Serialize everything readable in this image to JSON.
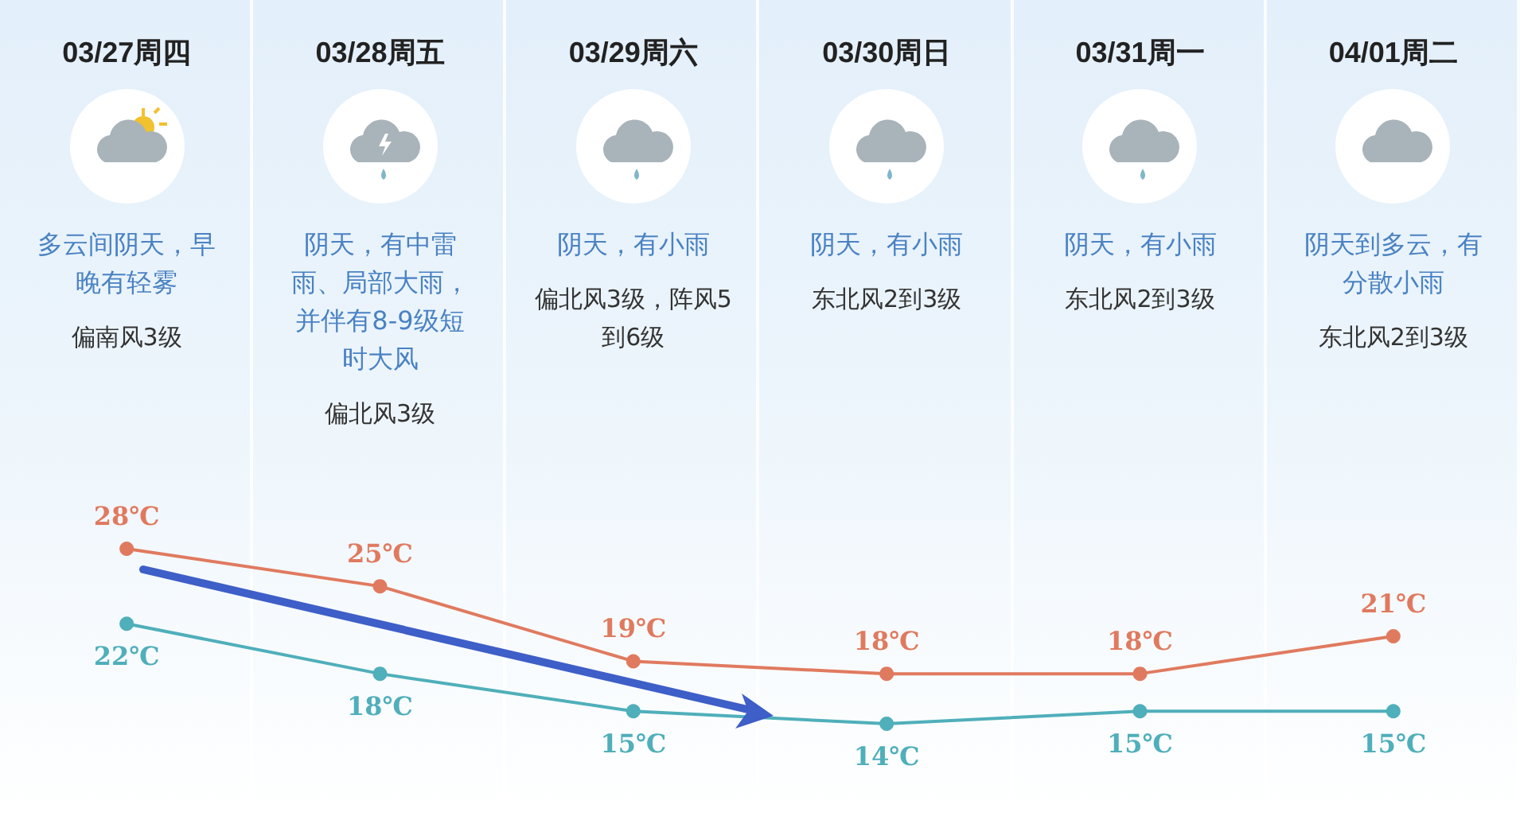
{
  "chart_data": {
    "type": "line",
    "categories": [
      "03/27周四",
      "03/28周五",
      "03/29周六",
      "03/30周日",
      "03/31周一",
      "04/01周二"
    ],
    "series": [
      {
        "color": "#e07a5f",
        "values": [
          28,
          25,
          19,
          18,
          18,
          21
        ],
        "value_labels": [
          "28℃",
          "25℃",
          "19℃",
          "18℃",
          "18℃",
          "21℃"
        ]
      },
      {
        "color": "#4fafba",
        "values": [
          22,
          18,
          15,
          14,
          15,
          15
        ],
        "value_labels": [
          "22℃",
          "18℃",
          "15℃",
          "14℃",
          "15℃",
          "15℃"
        ]
      }
    ],
    "grid": false,
    "marker": "circle",
    "line_style": "solid",
    "annotations": [
      "多云间阴天，早晚有轻雾",
      "阴天，有中雷雨、局部大雨，并伴有8-9级短时大风",
      "阴天，有小雨",
      "阴天，有小雨",
      "阴天，有小雨",
      "阴天到多云，有分散小雨",
      "偏南风3级",
      "偏北风3级",
      "偏北风3级，阵风5到6级",
      "东北风2到3级",
      "东北风2到3级",
      "东北风2到3级"
    ]
  }
}
